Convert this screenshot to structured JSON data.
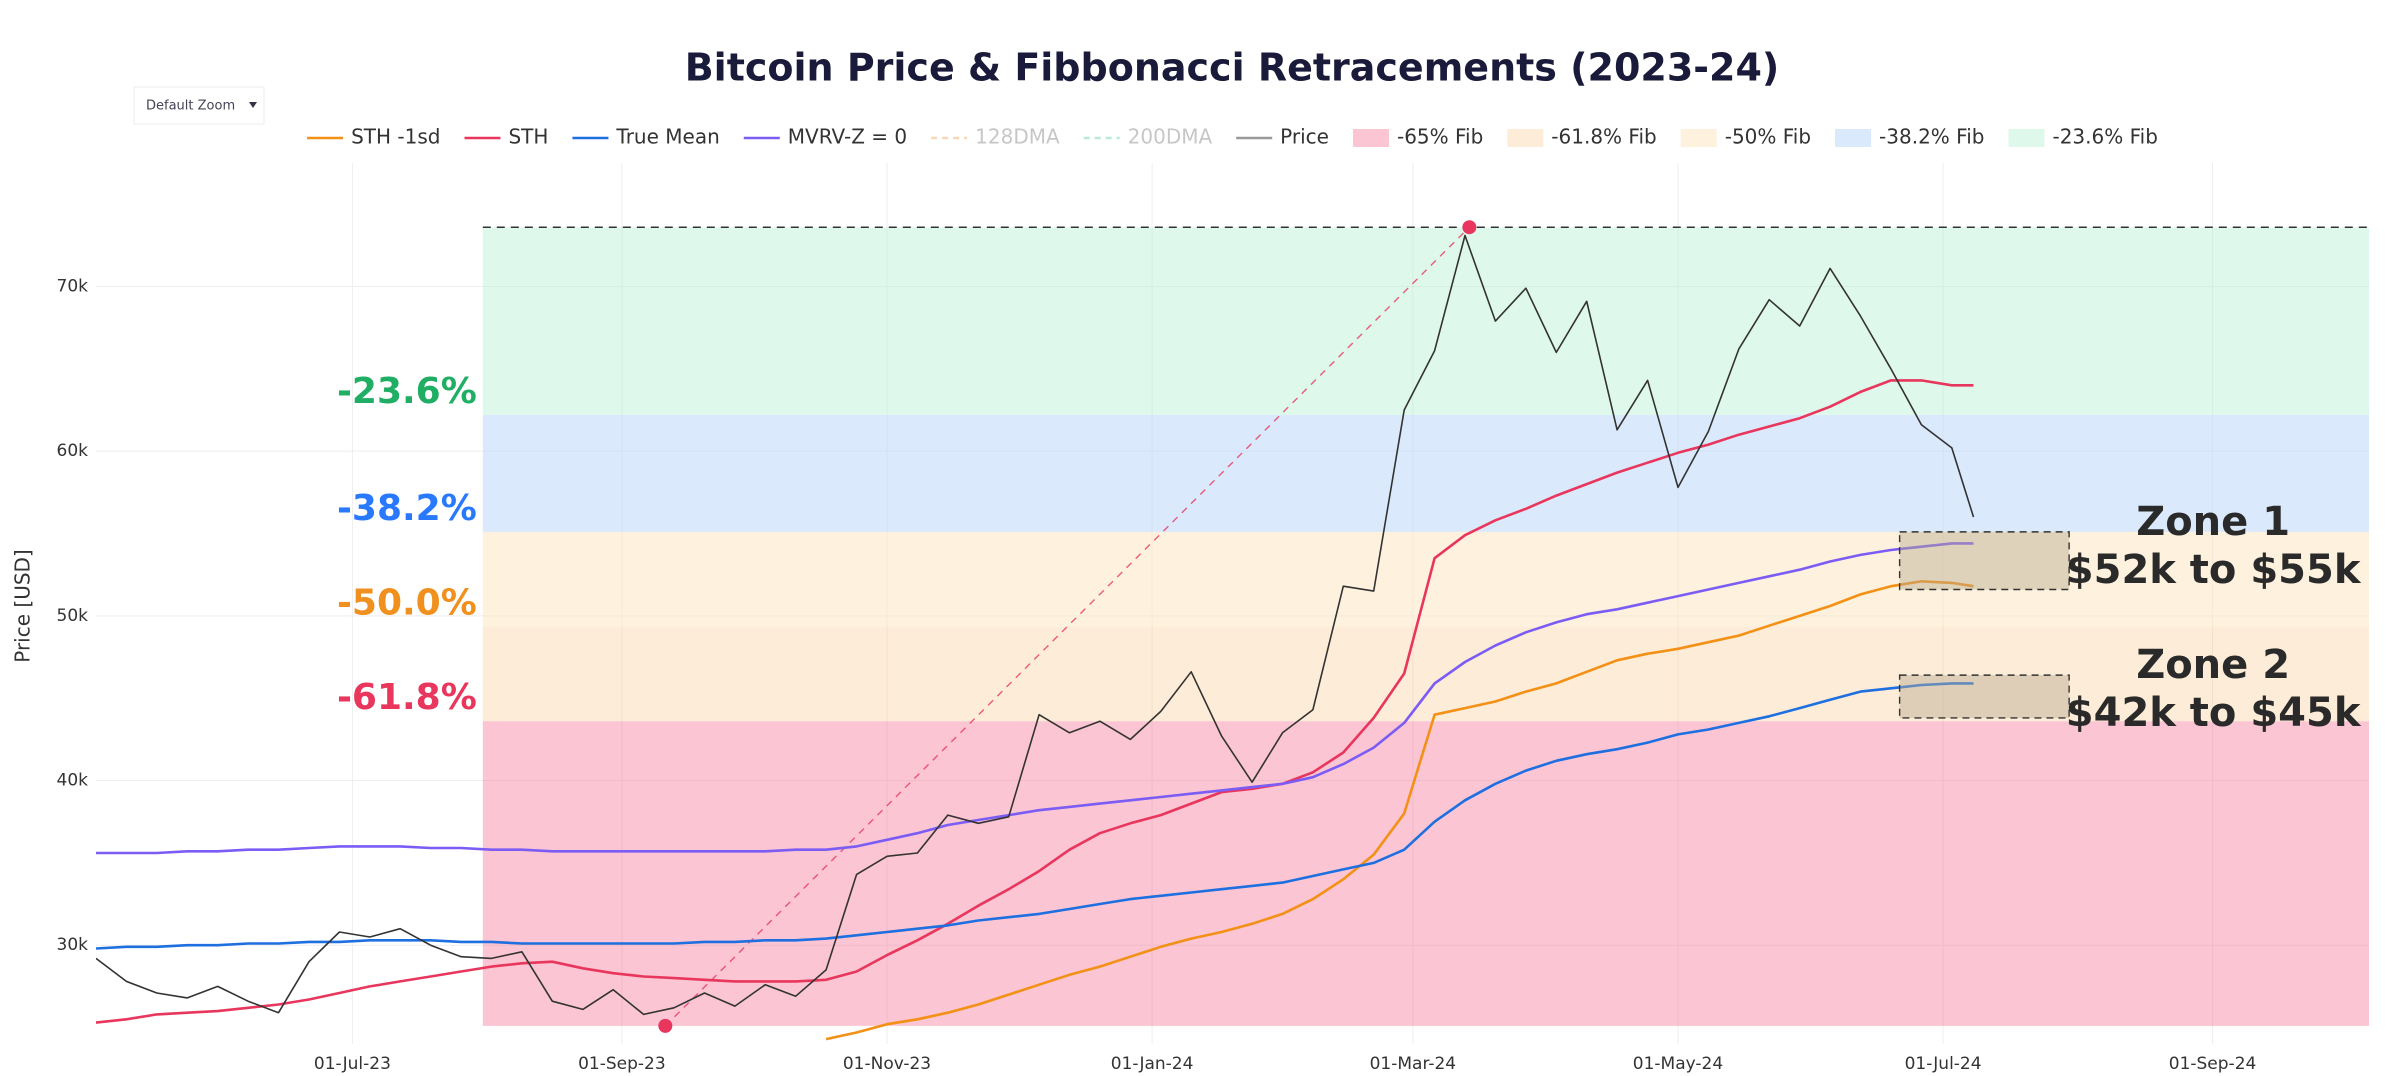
{
  "chart_data": {
    "type": "line",
    "title": "Bitcoin Price & Fibbonacci Retracements (2023-24)",
    "zoom_menu": "Default Zoom",
    "yaxis_label": "Price [USD]",
    "xlim": [
      "2023-05-03",
      "2024-10-07"
    ],
    "xticks": [
      {
        "value": "2023-07-01",
        "label": "01-Jul-23"
      },
      {
        "value": "2023-09-01",
        "label": "01-Sep-23"
      },
      {
        "value": "2023-11-01",
        "label": "01-Nov-23"
      },
      {
        "value": "2024-01-01",
        "label": "01-Jan-24"
      },
      {
        "value": "2024-03-01",
        "label": "01-Mar-24"
      },
      {
        "value": "2024-05-01",
        "label": "01-May-24"
      },
      {
        "value": "2024-07-01",
        "label": "01-Jul-24"
      },
      {
        "value": "2024-09-01",
        "label": "01-Sep-24"
      }
    ],
    "ylim": [
      24000,
      77500
    ],
    "yticks": [
      {
        "value": 30000,
        "label": "30k"
      },
      {
        "value": 40000,
        "label": "40k"
      },
      {
        "value": 50000,
        "label": "50k"
      },
      {
        "value": 60000,
        "label": "60k"
      },
      {
        "value": 70000,
        "label": "70k"
      }
    ],
    "grid": true,
    "x": [
      "2023-05-03",
      "2023-05-10",
      "2023-05-17",
      "2023-05-24",
      "2023-05-31",
      "2023-06-07",
      "2023-06-14",
      "2023-06-21",
      "2023-06-28",
      "2023-07-05",
      "2023-07-12",
      "2023-07-19",
      "2023-07-26",
      "2023-08-02",
      "2023-08-09",
      "2023-08-16",
      "2023-08-23",
      "2023-08-30",
      "2023-09-06",
      "2023-09-13",
      "2023-09-20",
      "2023-09-27",
      "2023-10-04",
      "2023-10-11",
      "2023-10-18",
      "2023-10-25",
      "2023-11-01",
      "2023-11-08",
      "2023-11-15",
      "2023-11-22",
      "2023-11-29",
      "2023-12-06",
      "2023-12-13",
      "2023-12-20",
      "2023-12-27",
      "2024-01-03",
      "2024-01-10",
      "2024-01-17",
      "2024-01-24",
      "2024-01-31",
      "2024-02-07",
      "2024-02-14",
      "2024-02-21",
      "2024-02-28",
      "2024-03-06",
      "2024-03-13",
      "2024-03-20",
      "2024-03-27",
      "2024-04-03",
      "2024-04-10",
      "2024-04-17",
      "2024-04-24",
      "2024-05-01",
      "2024-05-08",
      "2024-05-15",
      "2024-05-22",
      "2024-05-29",
      "2024-06-05",
      "2024-06-12",
      "2024-06-19",
      "2024-06-26",
      "2024-07-03",
      "2024-07-08"
    ],
    "series": [
      {
        "name": "STH -1sd",
        "color": "#f39016",
        "width": 2.6,
        "values": [
          null,
          null,
          null,
          null,
          null,
          null,
          null,
          null,
          null,
          null,
          null,
          null,
          null,
          null,
          null,
          null,
          null,
          null,
          null,
          null,
          null,
          null,
          null,
          null,
          24300,
          24700,
          25200,
          25500,
          25900,
          26400,
          27000,
          27600,
          28200,
          28700,
          29300,
          29900,
          30400,
          30800,
          31300,
          31900,
          32800,
          34000,
          35500,
          38000,
          44000,
          44400,
          44800,
          45400,
          45900,
          46600,
          47300,
          47700,
          48000,
          48400,
          48800,
          49400,
          50000,
          50600,
          51300,
          51800,
          52100,
          52000,
          51800
        ]
      },
      {
        "name": "STH",
        "color": "#e8365d",
        "width": 2.6,
        "values": [
          25300,
          25500,
          25800,
          25900,
          26000,
          26200,
          26400,
          26700,
          27100,
          27500,
          27800,
          28100,
          28400,
          28700,
          28900,
          29000,
          28600,
          28300,
          28100,
          28000,
          27900,
          27800,
          27800,
          27800,
          27900,
          28400,
          29400,
          30300,
          31300,
          32400,
          33400,
          34500,
          35800,
          36800,
          37400,
          37900,
          38600,
          39300,
          39500,
          39800,
          40500,
          41700,
          43800,
          46500,
          53500,
          54900,
          55800,
          56500,
          57300,
          58000,
          58700,
          59300,
          59900,
          60400,
          61000,
          61500,
          62000,
          62700,
          63600,
          64300,
          64300,
          64000,
          64000
        ]
      },
      {
        "name": "True Mean",
        "color": "#1e6fe0",
        "width": 2.6,
        "values": [
          29800,
          29900,
          29900,
          30000,
          30000,
          30100,
          30100,
          30200,
          30200,
          30300,
          30300,
          30300,
          30200,
          30200,
          30100,
          30100,
          30100,
          30100,
          30100,
          30100,
          30200,
          30200,
          30300,
          30300,
          30400,
          30600,
          30800,
          31000,
          31200,
          31500,
          31700,
          31900,
          32200,
          32500,
          32800,
          33000,
          33200,
          33400,
          33600,
          33800,
          34200,
          34600,
          35000,
          35800,
          37500,
          38800,
          39800,
          40600,
          41200,
          41600,
          41900,
          42300,
          42800,
          43100,
          43500,
          43900,
          44400,
          44900,
          45400,
          45600,
          45800,
          45900,
          45900
        ]
      },
      {
        "name": "MVRV-Z = 0",
        "color": "#7b5cf5",
        "width": 2.6,
        "values": [
          35600,
          35600,
          35600,
          35700,
          35700,
          35800,
          35800,
          35900,
          36000,
          36000,
          36000,
          35900,
          35900,
          35800,
          35800,
          35700,
          35700,
          35700,
          35700,
          35700,
          35700,
          35700,
          35700,
          35800,
          35800,
          36000,
          36400,
          36800,
          37300,
          37600,
          37900,
          38200,
          38400,
          38600,
          38800,
          39000,
          39200,
          39400,
          39600,
          39800,
          40200,
          41000,
          42000,
          43500,
          45900,
          47200,
          48200,
          49000,
          49600,
          50100,
          50400,
          50800,
          51200,
          51600,
          52000,
          52400,
          52800,
          53300,
          53700,
          54000,
          54200,
          54400,
          54400
        ]
      },
      {
        "name": "128DMA",
        "color": "#f5b87a",
        "dash": true,
        "visible": false
      },
      {
        "name": "200DMA",
        "color": "#7fd8c0",
        "dash": true,
        "visible": false
      },
      {
        "name": "Price",
        "color": "#333333",
        "legend_color": "#999999",
        "width": 1.6,
        "values": [
          29200,
          27800,
          27100,
          26800,
          27500,
          26600,
          25900,
          29000,
          30800,
          30500,
          31000,
          30000,
          29300,
          29200,
          29600,
          26600,
          26100,
          27300,
          25800,
          26200,
          27100,
          26300,
          27600,
          26900,
          28500,
          34300,
          35400,
          35600,
          37900,
          37400,
          37800,
          44000,
          42900,
          43600,
          42500,
          44200,
          46600,
          42700,
          39900,
          42900,
          44300,
          51800,
          51500,
          62500,
          66100,
          73100,
          67900,
          69900,
          66000,
          69100,
          61300,
          64300,
          57800,
          61200,
          66200,
          69200,
          67600,
          71100,
          68200,
          65000,
          61600,
          60200,
          56000
        ]
      }
    ],
    "fib_start": "2023-07-31",
    "fib_high": {
      "x": "2024-03-14",
      "y": 73600
    },
    "fib_low": {
      "x": "2023-09-11",
      "y": 25100
    },
    "bands": [
      {
        "name": "-65% Fib",
        "color": "rgba(244,110,145,0.40)",
        "upper": 43600,
        "lower": 25100
      },
      {
        "name": "-61.8% Fib",
        "color": "rgba(250,205,150,0.38)",
        "upper": 49350,
        "lower": 43600,
        "level_label": "-61.8%",
        "label_color": "#e8365d"
      },
      {
        "name": "-50% Fib",
        "color": "rgba(253,232,195,0.55)",
        "upper": 55100,
        "lower": 49350,
        "level_label": "-50.0%",
        "label_color": "#f0901f"
      },
      {
        "name": "-38.2% Fib",
        "color": "rgba(190,215,250,0.55)",
        "upper": 62200,
        "lower": 55100,
        "level_label": "-38.2%",
        "label_color": "#2979ff"
      },
      {
        "name": "-23.6% Fib",
        "color": "rgba(185,240,212,0.45)",
        "upper": 73600,
        "lower": 62200,
        "level_label": "-23.6%",
        "label_color": "#1fae63"
      }
    ],
    "zones": [
      {
        "title": "Zone 1",
        "label": "$52k to $55k",
        "x": [
          "2024-06-21",
          "2024-07-30"
        ],
        "y": [
          51600,
          55100
        ]
      },
      {
        "title": "Zone 2",
        "label": "$42k to $45k",
        "x": [
          "2024-06-21",
          "2024-07-30"
        ],
        "y": [
          43800,
          46400
        ]
      }
    ]
  }
}
